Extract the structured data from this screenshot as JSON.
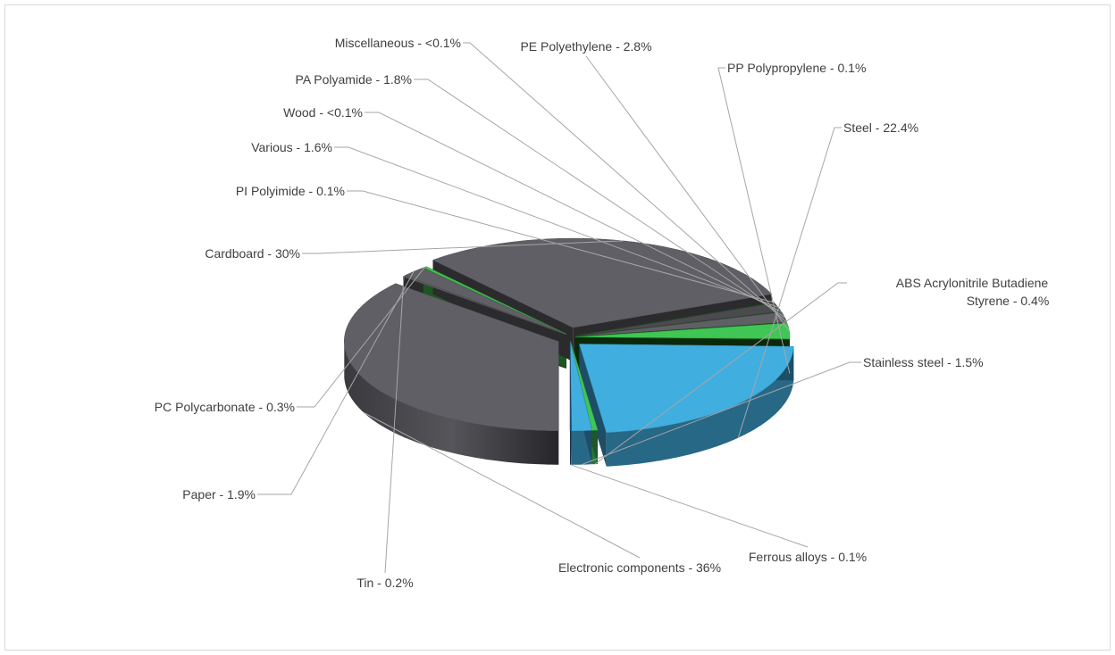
{
  "chart_data": {
    "type": "pie",
    "title": "",
    "labels": [
      "Electronic components - 36%",
      "Tin - 0.2%",
      "Paper - 1.9%",
      "PC Polycarbonate - 0.3%",
      "Cardboard - 30%",
      "PI Polyimide - 0.1%",
      "Various - 1.6%",
      "Wood - <0.1%",
      "PA Polyamide - 1.8%",
      "Miscellaneous - <0.1%",
      "PE Polyethylene - 2.8%",
      "PP Polypropylene - 0.1%",
      "Steel - 22.4%",
      "ABS Acrylonitrile Butadiene Styrene - 0.4%",
      "Stainless steel - 1.5%",
      "Ferrous alloys - 0.1%"
    ],
    "categories": [
      "Electronic components",
      "Tin",
      "Paper",
      "PC Polycarbonate",
      "Cardboard",
      "PI Polyimide",
      "Various",
      "Wood",
      "PA Polyamide",
      "Miscellaneous",
      "PE Polyethylene",
      "PP Polypropylene",
      "Steel",
      "ABS Acrylonitrile Butadiene Styrene",
      "Stainless steel",
      "Ferrous alloys"
    ],
    "values": [
      36,
      0.2,
      1.9,
      0.3,
      30,
      0.1,
      1.6,
      0.05,
      1.8,
      0.05,
      2.8,
      0.1,
      22.4,
      0.4,
      1.5,
      0.1
    ],
    "colors": [
      "#5f5f65",
      "#5f5f65",
      "#5f5f65",
      "#3fbf4a",
      "#5f5f65",
      "#1a5c1a",
      "#4a4a4f",
      "#1a5c1a",
      "#5f5f65",
      "#1a5c1a",
      "#3fc654",
      "#1a5c1a",
      "#41aee0",
      "#3fc654",
      "#41aee0",
      "#2a4f70"
    ],
    "legend": "none",
    "style": "3d-exploded"
  }
}
